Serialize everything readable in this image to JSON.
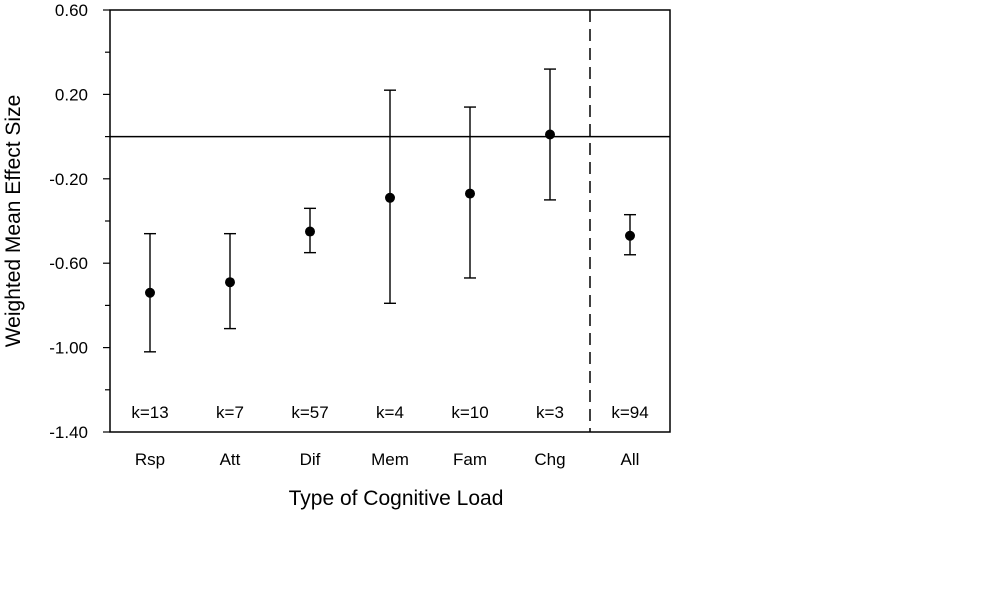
{
  "chart_data": {
    "type": "scatter",
    "subtype": "point-with-error-bars",
    "title": "",
    "xlabel": "Type of Cognitive Load",
    "ylabel": "Weighted Mean Effect Size",
    "ylim": [
      -1.4,
      0.6
    ],
    "yticks": [
      {
        "value": 0.6,
        "label": "0.60"
      },
      {
        "value": 0.2,
        "label": "0.20"
      },
      {
        "value": -0.2,
        "label": "-0.20"
      },
      {
        "value": -0.6,
        "label": "-0.60"
      },
      {
        "value": -1.0,
        "label": "-1.00"
      },
      {
        "value": -1.4,
        "label": "-1.40"
      }
    ],
    "yminor_ticks": [
      0.4,
      0.0,
      -0.4,
      -0.8,
      -1.2
    ],
    "reference_line": 0.0,
    "grid": false,
    "legend": "none",
    "separator_after_index": 5,
    "categories": [
      "Rsp",
      "Att",
      "Dif",
      "Mem",
      "Fam",
      "Chg",
      "All"
    ],
    "points": [
      {
        "category": "Rsp",
        "mean": -0.74,
        "lower": -1.02,
        "upper": -0.46,
        "k": "k=13"
      },
      {
        "category": "Att",
        "mean": -0.69,
        "lower": -0.91,
        "upper": -0.46,
        "k": "k=7"
      },
      {
        "category": "Dif",
        "mean": -0.45,
        "lower": -0.55,
        "upper": -0.34,
        "k": "k=57"
      },
      {
        "category": "Mem",
        "mean": -0.29,
        "lower": -0.79,
        "upper": 0.22,
        "k": "k=4"
      },
      {
        "category": "Fam",
        "mean": -0.27,
        "lower": -0.67,
        "upper": 0.14,
        "k": "k=10"
      },
      {
        "category": "Chg",
        "mean": 0.01,
        "lower": -0.3,
        "upper": 0.32,
        "k": "k=3"
      },
      {
        "category": "All",
        "mean": -0.47,
        "lower": -0.56,
        "upper": -0.37,
        "k": "k=94"
      }
    ],
    "colors": {
      "ink": "#000000",
      "background": "#ffffff"
    }
  }
}
